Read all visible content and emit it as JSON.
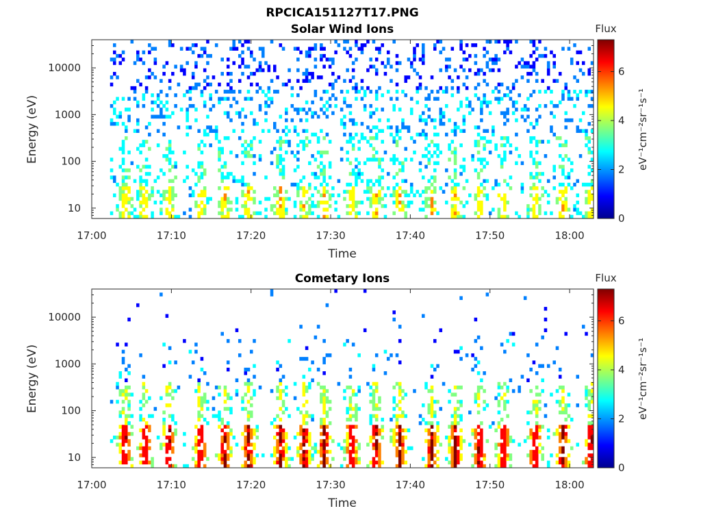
{
  "figure": {
    "title": "RPCICA151127T17.PNG"
  },
  "colormap": [
    "#00008f",
    "#0000ff",
    "#0080ff",
    "#00ffff",
    "#80ff80",
    "#ffff00",
    "#ff8000",
    "#ff0000",
    "#800000"
  ],
  "chart_data": [
    {
      "type": "heatmap",
      "id": "solar",
      "title": "Solar Wind Ions",
      "xlabel": "Time",
      "ylabel": "Energy (eV)",
      "x_range_min": [
        0,
        63
      ],
      "x_ticks": [
        "17:00",
        "17:10",
        "17:20",
        "17:30",
        "17:40",
        "17:50",
        "18:00"
      ],
      "y_scale": "log",
      "y_range": [
        6,
        40000
      ],
      "y_ticks": [
        "10",
        "100",
        "1000",
        "10000"
      ],
      "colorbar": {
        "label": "Flux",
        "unit_label": "eV⁻¹cm⁻²sr⁻¹s⁻¹",
        "range": [
          0,
          7.3
        ],
        "ticks": [
          "0",
          "2",
          "4",
          "6"
        ]
      },
      "data_start_min": 2.3,
      "bursts_min": [
        4.0,
        6.5,
        9.5,
        13.5,
        16.5,
        19.5,
        23.5,
        26.5,
        29.0,
        32.5,
        35.5,
        38.5,
        42.5,
        45.5,
        48.5,
        51.5,
        55.5,
        59.0,
        62.5
      ],
      "max_level_est": 4.8
    },
    {
      "type": "heatmap",
      "id": "comet",
      "title": "Cometary Ions",
      "xlabel": "Time",
      "ylabel": "Energy (eV)",
      "x_range_min": [
        0,
        63
      ],
      "x_ticks": [
        "17:00",
        "17:10",
        "17:20",
        "17:30",
        "17:40",
        "17:50",
        "18:00"
      ],
      "y_scale": "log",
      "y_range": [
        6,
        40000
      ],
      "y_ticks": [
        "10",
        "100",
        "1000",
        "10000"
      ],
      "colorbar": {
        "label": "Flux",
        "unit_label": "eV⁻¹cm⁻²sr⁻¹s⁻¹",
        "range": [
          0,
          7.3
        ],
        "ticks": [
          "0",
          "2",
          "4",
          "6"
        ]
      },
      "data_start_min": 2.3,
      "bursts_min": [
        4.0,
        6.5,
        9.5,
        13.5,
        16.5,
        19.5,
        23.5,
        26.5,
        29.0,
        32.5,
        35.5,
        38.5,
        42.5,
        45.5,
        48.5,
        51.5,
        55.5,
        59.0,
        62.5
      ],
      "max_level_est": 7.0
    }
  ]
}
